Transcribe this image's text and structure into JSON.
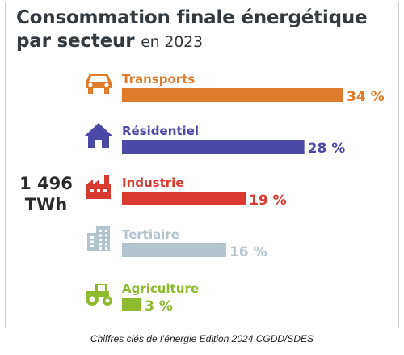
{
  "header": {
    "title_line1": "Consommation finale énergétique",
    "title_line2": "par secteur",
    "title_year": "en 2023"
  },
  "total": {
    "value": "1 496",
    "unit": "TWh"
  },
  "caption": "Chiffres clés de l’énergie Edition 2024 CGDD/SDES",
  "chart_data": {
    "type": "bar",
    "orientation": "horizontal",
    "categories": [
      "Transports",
      "Résidentiel",
      "Industrie",
      "Tertiaire",
      "Agriculture"
    ],
    "values": [
      34,
      28,
      19,
      16,
      3
    ],
    "value_labels": [
      "34 %",
      "28 %",
      "19 %",
      "16 %",
      "3 %"
    ],
    "unit": "%",
    "colors": [
      "#e07b2c",
      "#4b48a6",
      "#d93a30",
      "#b4c4ce",
      "#8fba2f"
    ],
    "icons": [
      "car-icon",
      "house-icon",
      "factory-icon",
      "office-building-icon",
      "tractor-icon"
    ],
    "xlim": [
      0,
      34
    ],
    "grid": false,
    "legend": "none"
  }
}
